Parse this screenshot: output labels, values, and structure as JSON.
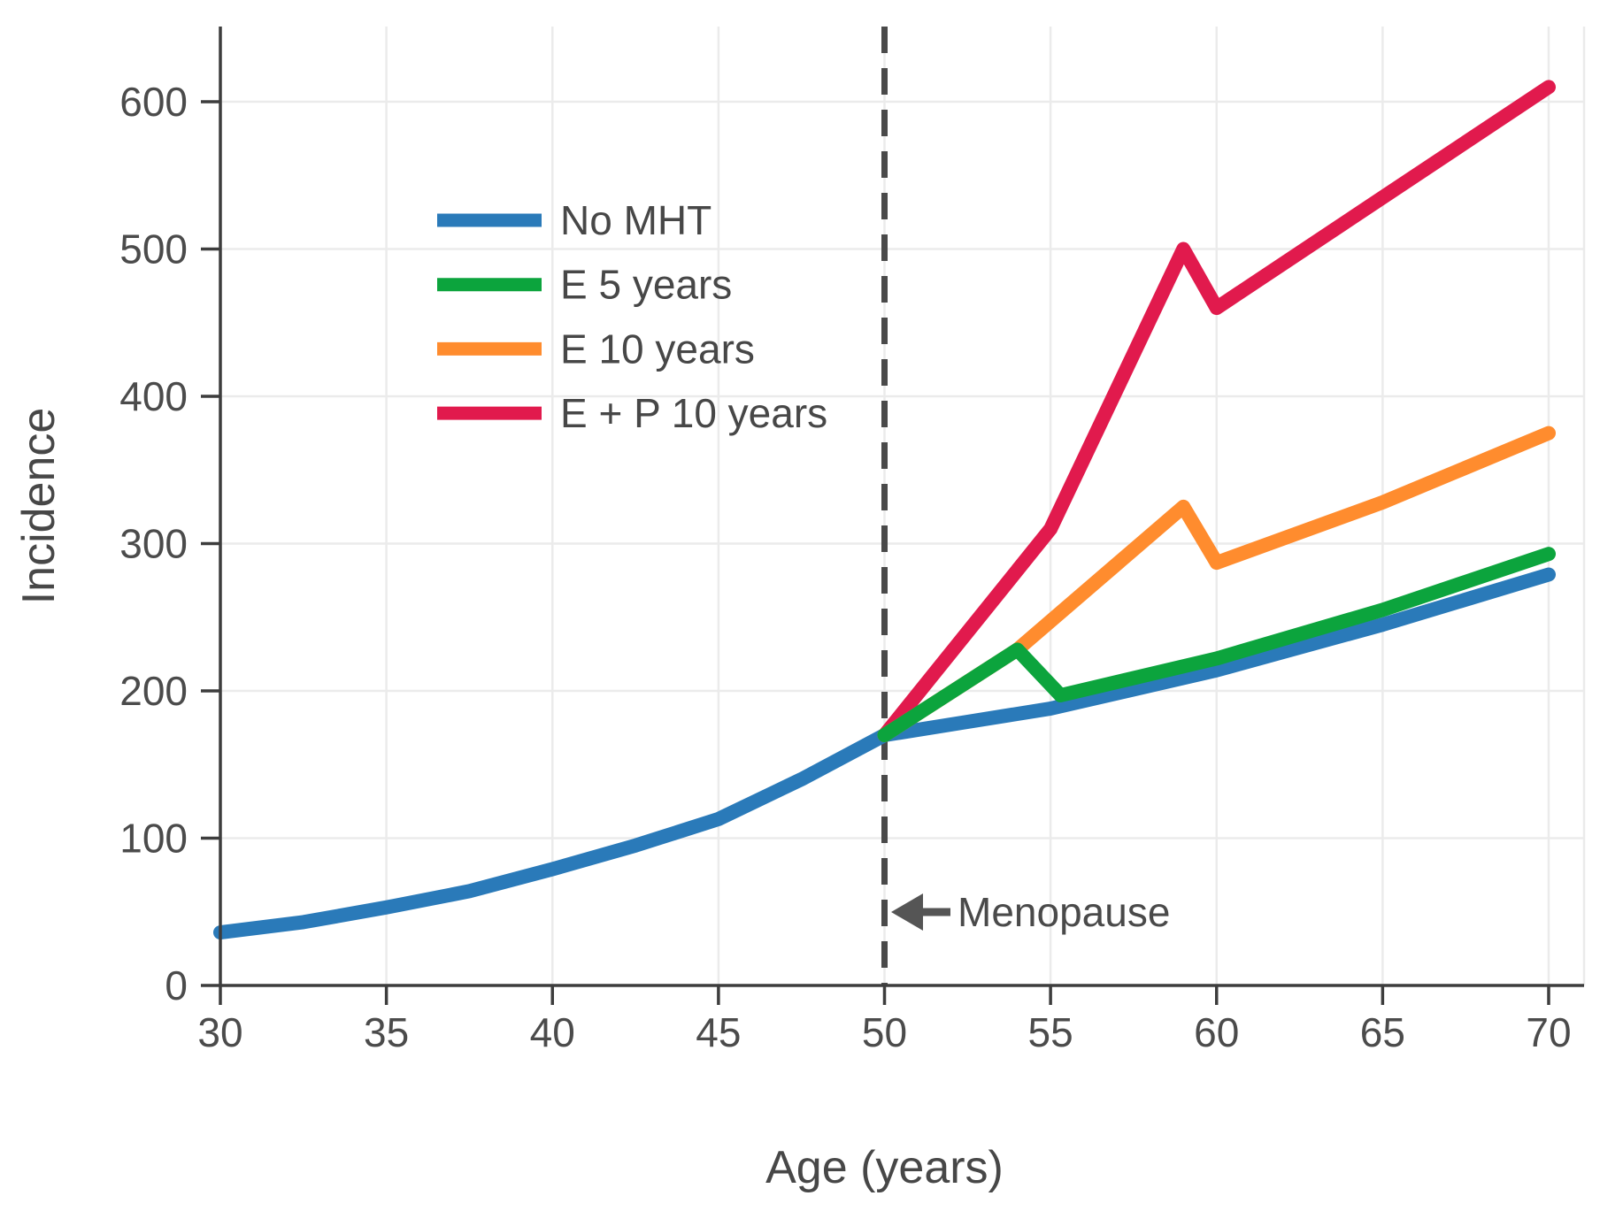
{
  "chart_data": {
    "type": "line",
    "title": "",
    "xlabel": "Age (years)",
    "ylabel": "Incidence",
    "xlim": [
      30,
      71.1
    ],
    "ylim": [
      0,
      651
    ],
    "x_ticks": [
      30,
      35,
      40,
      45,
      50,
      55,
      60,
      65,
      70
    ],
    "y_ticks": [
      0,
      100,
      200,
      300,
      400,
      500,
      600
    ],
    "grid": true,
    "legend_position": "upper-left-inside",
    "series": [
      {
        "name": "No MHT",
        "color": "#2a7ab9",
        "points": [
          [
            30,
            36
          ],
          [
            32.5,
            43
          ],
          [
            35,
            53
          ],
          [
            37.5,
            64
          ],
          [
            40,
            79
          ],
          [
            42.5,
            95
          ],
          [
            45,
            113
          ],
          [
            47.5,
            140
          ],
          [
            50,
            170
          ],
          [
            52.5,
            179
          ],
          [
            55,
            188
          ],
          [
            60,
            214
          ],
          [
            65,
            245
          ],
          [
            70,
            279
          ]
        ]
      },
      {
        "name": "E 5 years",
        "color": "#0ca43d",
        "points": [
          [
            50,
            170
          ],
          [
            54,
            228
          ],
          [
            55.3,
            197
          ],
          [
            60,
            222
          ],
          [
            65,
            255
          ],
          [
            70,
            293
          ]
        ]
      },
      {
        "name": "E 10 years",
        "color": "#ff8c2e",
        "points": [
          [
            50,
            170
          ],
          [
            54,
            228
          ],
          [
            59,
            325
          ],
          [
            60,
            287
          ],
          [
            65,
            328
          ],
          [
            70,
            375
          ]
        ]
      },
      {
        "name": "E + P 10 years",
        "color": "#e11a4d",
        "points": [
          [
            50,
            170
          ],
          [
            55,
            310
          ],
          [
            59,
            500
          ],
          [
            60,
            460
          ],
          [
            65,
            535
          ],
          [
            70,
            610
          ]
        ]
      }
    ],
    "vline": {
      "x": 50,
      "style": "dashed",
      "color": "#4a4a4a"
    },
    "annotation": {
      "text": "Menopause",
      "target_x": 50,
      "arrow_direction": "left"
    }
  },
  "colors": {
    "grid": "#ebebeb",
    "spine": "#3d3d3d",
    "tick_text": "#4b4b4b",
    "axis_title_text": "#474747",
    "annotation_text": "#4a4a4a",
    "arrow": "#555555",
    "background": "#ffffff"
  }
}
